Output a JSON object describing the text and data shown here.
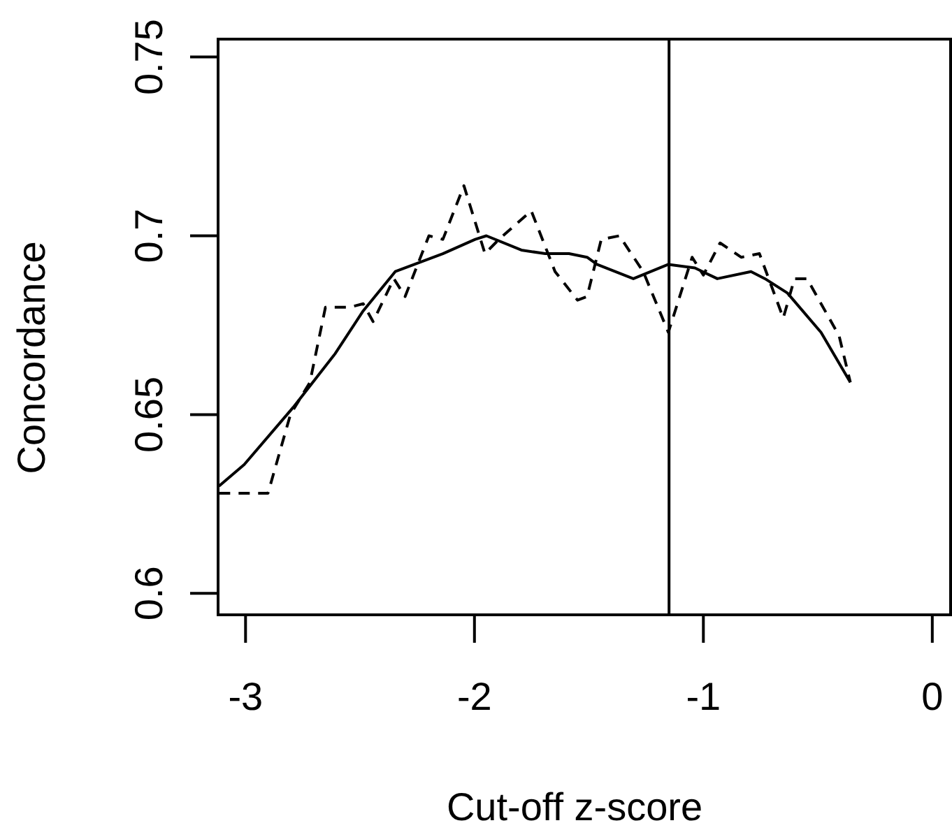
{
  "chart_data": {
    "type": "line",
    "xlabel": "Cut-off z-score",
    "ylabel": "Concordance",
    "xlim": [
      -3.12,
      0.08
    ],
    "ylim": [
      0.594,
      0.755
    ],
    "xticks": [
      -3,
      -2,
      -1,
      0
    ],
    "yticks": [
      0.6,
      0.65,
      0.7,
      0.75
    ],
    "grid": false,
    "marker": "none",
    "series": [
      {
        "color": "#000000",
        "line_style": "solid",
        "x": [
          -3.116,
          -3.006,
          -2.792,
          -2.609,
          -2.486,
          -2.346,
          -2.138,
          -1.997,
          -1.948,
          -1.795,
          -1.691,
          -1.587,
          -1.508,
          -1.465,
          -1.306,
          -1.153,
          -1.037,
          -0.939,
          -0.792,
          -0.731,
          -0.633,
          -0.486,
          -0.358
        ],
        "values": [
          0.63,
          0.636,
          0.652,
          0.667,
          0.679,
          0.69,
          0.695,
          0.699,
          0.7,
          0.696,
          0.695,
          0.695,
          0.694,
          0.692,
          0.688,
          0.692,
          0.691,
          0.688,
          0.69,
          0.688,
          0.684,
          0.673,
          0.659
        ]
      },
      {
        "color": "#000000",
        "line_style": "dashed",
        "x": [
          -3.116,
          -3.018,
          -2.902,
          -2.804,
          -2.719,
          -2.651,
          -2.547,
          -2.486,
          -2.443,
          -2.352,
          -2.303,
          -2.199,
          -2.138,
          -2.046,
          -1.954,
          -1.893,
          -1.752,
          -1.648,
          -1.55,
          -1.508,
          -1.446,
          -1.367,
          -1.263,
          -1.153,
          -1.049,
          -1.0,
          -0.927,
          -0.835,
          -0.755,
          -0.651,
          -0.602,
          -0.547,
          -0.407,
          -0.358
        ],
        "values": [
          0.628,
          0.628,
          0.628,
          0.65,
          0.659,
          0.68,
          0.68,
          0.681,
          0.676,
          0.688,
          0.683,
          0.7,
          0.699,
          0.714,
          0.695,
          0.699,
          0.707,
          0.69,
          0.682,
          0.683,
          0.699,
          0.7,
          0.69,
          0.673,
          0.694,
          0.689,
          0.698,
          0.694,
          0.695,
          0.677,
          0.688,
          0.688,
          0.672,
          0.659
        ]
      }
    ],
    "ref_lines": [
      {
        "axis": "x",
        "value": -1.15,
        "color": "#000000",
        "line_style": "solid"
      }
    ]
  }
}
